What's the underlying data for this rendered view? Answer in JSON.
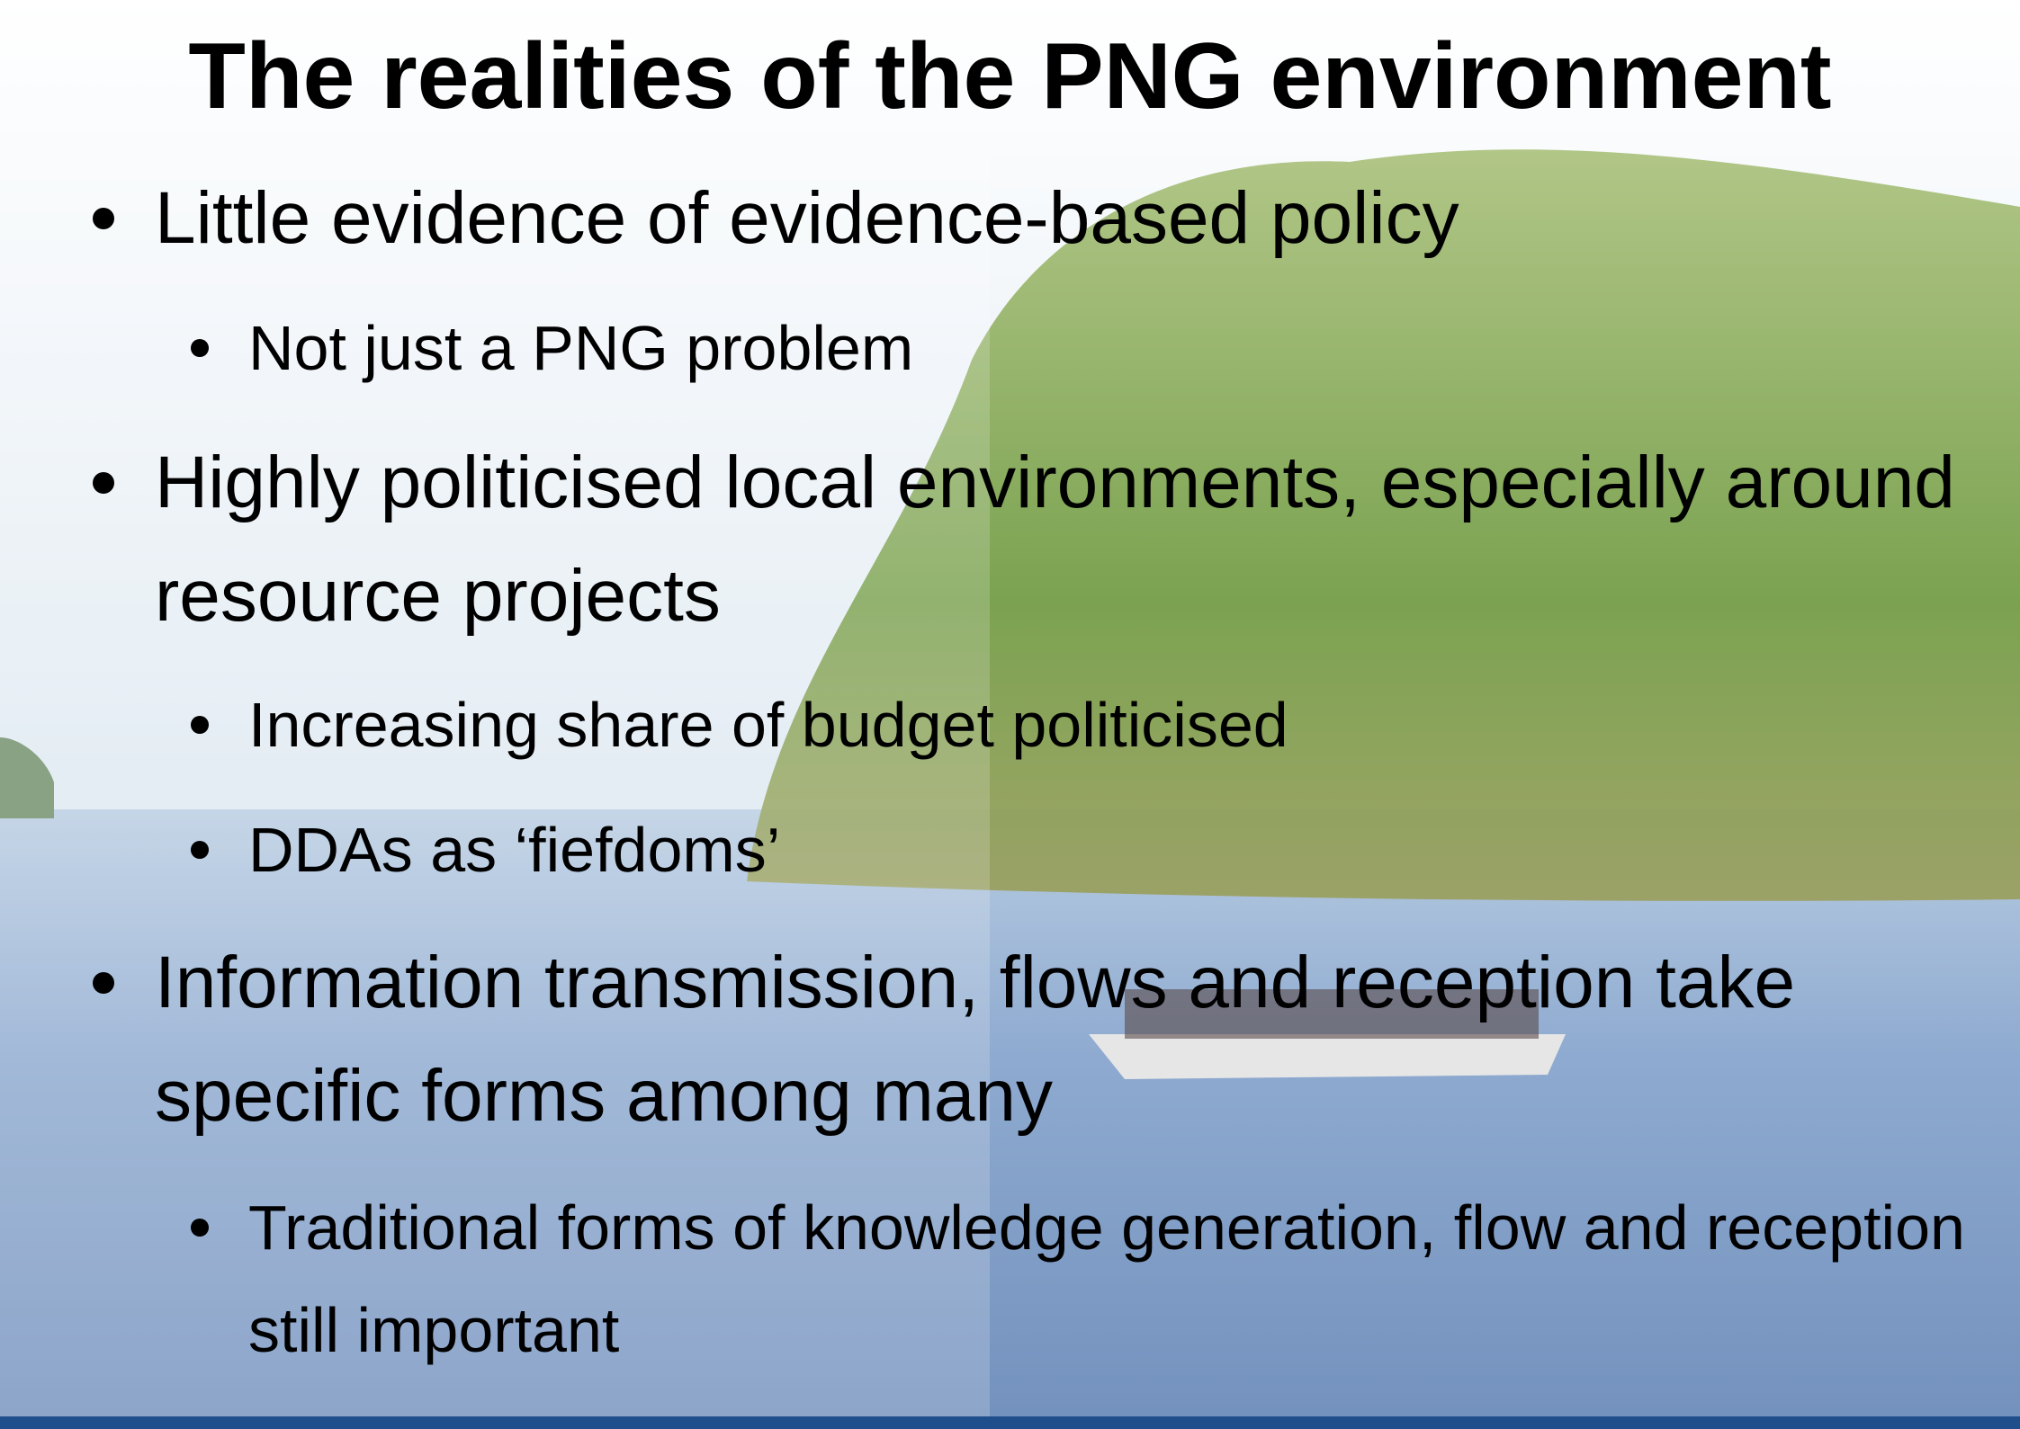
{
  "title": "The realities of the PNG environment",
  "bullets": [
    {
      "text": "Little evidence of evidence-based policy",
      "sub": [
        "Not just a PNG problem"
      ]
    },
    {
      "text": "Highly politicised local environments, especially around resource projects",
      "sub": [
        "Increasing share of budget politicised",
        "DDAs as ‘fiefdoms’"
      ]
    },
    {
      "text": "Information transmission, flows and reception take specific forms among many",
      "sub": [
        "Traditional forms of knowledge generation, flow and reception still important"
      ]
    }
  ]
}
